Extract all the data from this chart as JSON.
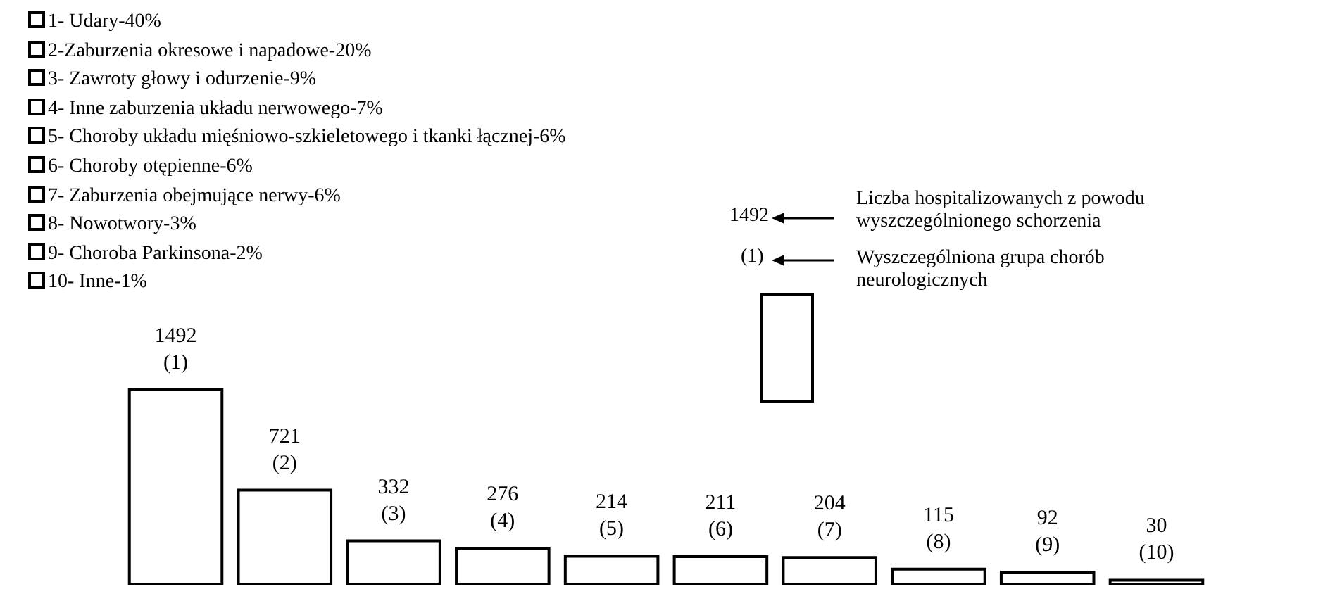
{
  "chart_data": {
    "type": "bar",
    "categories": [
      "(1)",
      "(2)",
      "(3)",
      "(4)",
      "(5)",
      "(6)",
      "(7)",
      "(8)",
      "(9)",
      "(10)"
    ],
    "values": [
      1492,
      721,
      332,
      276,
      214,
      211,
      204,
      115,
      92,
      30
    ],
    "color": "#ffffff",
    "data_labels": true,
    "annotations": [
      "1- Udary-40%",
      "2-Zaburzenia okresowe i napadowe-20%",
      "3- Zawroty głowy i odurzenie-9%",
      "4- Inne zaburzenia układu nerwowego-7%",
      "5- Choroby układu mięśniowo-szkieletowego i tkanki łącznej-6%",
      "6- Choroby otępienne-6%",
      "7- Zaburzenia obejmujące nerwy-6%",
      "8- Nowotwory-3%",
      "9- Choroba Parkinsona-2%",
      "10- Inne-1%",
      "1492",
      "(1)",
      "Liczba hospitalizowanych z powodu wyszczególnionego schorzenia",
      "Wyszczególniona grupa chorób neurologicznych"
    ]
  }
}
